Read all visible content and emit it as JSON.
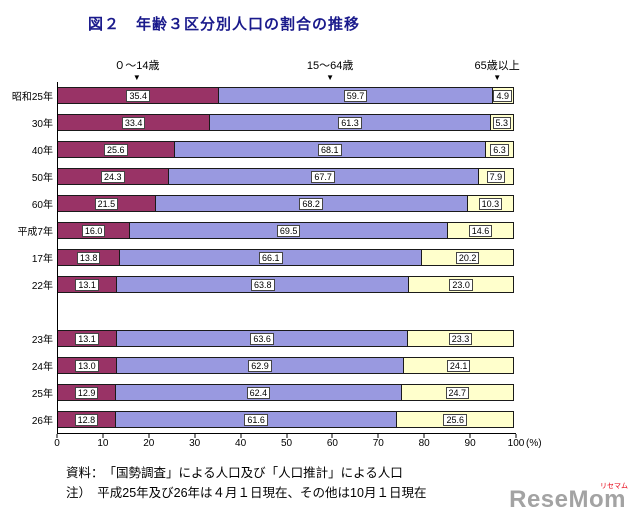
{
  "title": "図２　年齢３区分別人口の割合の推移",
  "chart_data": {
    "type": "bar",
    "orientation": "horizontal",
    "stacked": true,
    "categories": [
      "昭和25年",
      "30年",
      "40年",
      "50年",
      "60年",
      "平成7年",
      "17年",
      "22年",
      "23年",
      "24年",
      "25年",
      "26年"
    ],
    "gap_after_index": 7,
    "series": [
      {
        "name": "０～14歳",
        "color": "#993366",
        "values": [
          35.4,
          33.4,
          25.6,
          24.3,
          21.5,
          16.0,
          13.8,
          13.1,
          13.1,
          13.0,
          12.9,
          12.8
        ]
      },
      {
        "name": "15～64歳",
        "color": "#9999e0",
        "values": [
          59.7,
          61.3,
          68.1,
          67.7,
          68.2,
          69.5,
          66.1,
          63.8,
          63.6,
          62.9,
          62.4,
          61.6
        ]
      },
      {
        "name": "65歳以上",
        "color": "#ffffcc",
        "values": [
          4.9,
          5.3,
          6.3,
          7.9,
          10.3,
          14.6,
          20.2,
          23.0,
          23.3,
          24.1,
          24.7,
          25.6
        ]
      }
    ],
    "series_annotations": [
      {
        "label": "０～14歳",
        "arrow_x": 17.4
      },
      {
        "label": "15～64歳",
        "arrow_x": 59.5
      },
      {
        "label": "65歳以上",
        "arrow_x": 95.9
      }
    ],
    "x_ticks": [
      0,
      10,
      20,
      30,
      40,
      50,
      60,
      70,
      80,
      90,
      100
    ],
    "x_unit": "(%)",
    "xlim": [
      0,
      100
    ],
    "grid": false,
    "legend_position": "top-arrows",
    "value_labels": "boxed-white"
  },
  "footer": {
    "source": "資料：　「国勢調査」による人口及び「人口推計」による人口",
    "note": "注）　平成25年及び26年は４月１日現在、その他は10月１日現在"
  },
  "watermark": {
    "brand": "ReseMom",
    "kana": "リセマム"
  }
}
